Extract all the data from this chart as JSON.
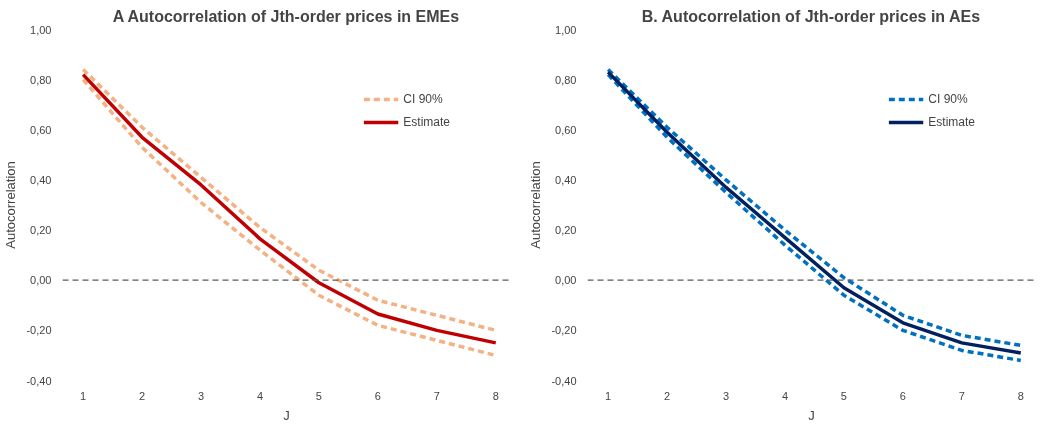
{
  "chart_data": [
    {
      "type": "line",
      "title": "A Autocorrelation of Jth-order prices in EMEs",
      "xlabel": "J",
      "ylabel": "Autocorrelation",
      "categories": [
        "1",
        "2",
        "3",
        "4",
        "5",
        "6",
        "7",
        "8"
      ],
      "series": [
        {
          "name": "CI 90%",
          "color": "#f4b183",
          "line_style": "dashed",
          "values": [
            0.84,
            0.61,
            0.41,
            0.21,
            0.04,
            -0.08,
            -0.14,
            -0.2
          ]
        },
        {
          "color": "#f4b183",
          "line_style": "dashed",
          "values": [
            0.8,
            0.53,
            0.31,
            0.12,
            -0.06,
            -0.18,
            -0.24,
            -0.3
          ]
        },
        {
          "name": "Estimate",
          "color": "#c00000",
          "line_style": "solid",
          "values": [
            0.82,
            0.57,
            0.38,
            0.165,
            -0.01,
            -0.135,
            -0.2,
            -0.25
          ]
        }
      ],
      "ylim": [
        -0.4,
        1.0
      ],
      "yticks": [
        {
          "value": -0.4,
          "label": "-0,40"
        },
        {
          "value": -0.2,
          "label": "-0,20"
        },
        {
          "value": 0,
          "label": "0,00"
        },
        {
          "value": 0.2,
          "label": "0,20"
        },
        {
          "value": 0.4,
          "label": "0,40"
        },
        {
          "value": 0.6,
          "label": "0,60"
        },
        {
          "value": 0.8,
          "label": "0,80"
        },
        {
          "value": 1.0,
          "label": "1,00"
        }
      ],
      "ref_lines": [
        {
          "axis": "y",
          "value": 0,
          "color": "#595959",
          "line_style": "dashed"
        }
      ],
      "grid": false,
      "legend": "top right",
      "marker": "none"
    },
    {
      "type": "line",
      "title": "B. Autocorrelation of Jth-order prices in AEs",
      "xlabel": "J",
      "ylabel": "Autocorrelation",
      "categories": [
        "1",
        "2",
        "3",
        "4",
        "5",
        "6",
        "7",
        "8"
      ],
      "series": [
        {
          "name": "CI 90%",
          "color": "#0070c0",
          "line_style": "dashed",
          "values": [
            0.84,
            0.61,
            0.4,
            0.2,
            0.01,
            -0.14,
            -0.22,
            -0.26
          ]
        },
        {
          "color": "#0070c0",
          "line_style": "dashed",
          "values": [
            0.82,
            0.57,
            0.35,
            0.14,
            -0.06,
            -0.2,
            -0.28,
            -0.32
          ]
        },
        {
          "name": "Estimate",
          "color": "#002060",
          "line_style": "solid",
          "values": [
            0.83,
            0.59,
            0.37,
            0.17,
            -0.03,
            -0.17,
            -0.25,
            -0.29
          ]
        }
      ],
      "ylim": [
        -0.4,
        1.0
      ],
      "yticks": [
        {
          "value": -0.4,
          "label": "-0,40"
        },
        {
          "value": -0.2,
          "label": "-0,20"
        },
        {
          "value": 0,
          "label": "0,00"
        },
        {
          "value": 0.2,
          "label": "0,20"
        },
        {
          "value": 0.4,
          "label": "0,40"
        },
        {
          "value": 0.6,
          "label": "0,60"
        },
        {
          "value": 0.8,
          "label": "0,80"
        },
        {
          "value": 1.0,
          "label": "1,00"
        }
      ],
      "ref_lines": [
        {
          "axis": "y",
          "value": 0,
          "color": "#595959",
          "line_style": "dashed"
        }
      ],
      "grid": false,
      "legend": "top right",
      "marker": "none"
    }
  ]
}
